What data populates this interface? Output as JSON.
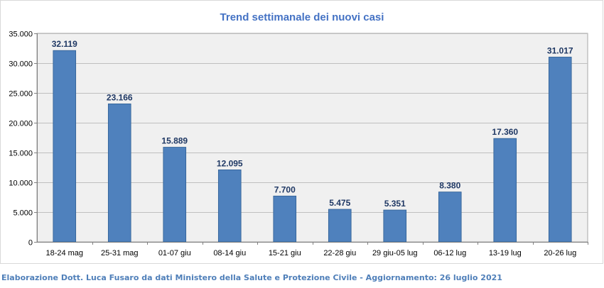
{
  "chart_data": {
    "type": "bar",
    "title": "Trend settimanale dei nuovi casi",
    "categories": [
      "18-24 mag",
      "25-31 mag",
      "01-07 giu",
      "08-14 giu",
      "15-21 giu",
      "22-28 giu",
      "29 giu-05 lug",
      "06-12 lug",
      "13-19 lug",
      "20-26 lug"
    ],
    "values": [
      32119,
      23166,
      15889,
      12095,
      7700,
      5475,
      5351,
      8380,
      17360,
      31017
    ],
    "value_labels": [
      "32.119",
      "23.166",
      "15.889",
      "12.095",
      "7.700",
      "5.475",
      "5.351",
      "8.380",
      "17.360",
      "31.017"
    ],
    "ylim": [
      0,
      35000
    ],
    "yticks": [
      0,
      5000,
      10000,
      15000,
      20000,
      25000,
      30000,
      35000
    ],
    "ytick_labels": [
      "0",
      "5.000",
      "10.000",
      "15.000",
      "20.000",
      "25.000",
      "30.000",
      "35.000"
    ],
    "grid": true,
    "legend": "none",
    "colors": {
      "bar": "#4f81bd",
      "bar_stroke": "#2f5f94",
      "title": "#4472c4",
      "value_label": "#1f3864",
      "plot_bg": "#f0f0f0",
      "grid": "#bfbfbf"
    }
  },
  "caption": "Elaborazione Dott. Luca Fusaro da dati Ministero della Salute e Protezione Civile - Aggiornamento: 26 luglio 2021"
}
